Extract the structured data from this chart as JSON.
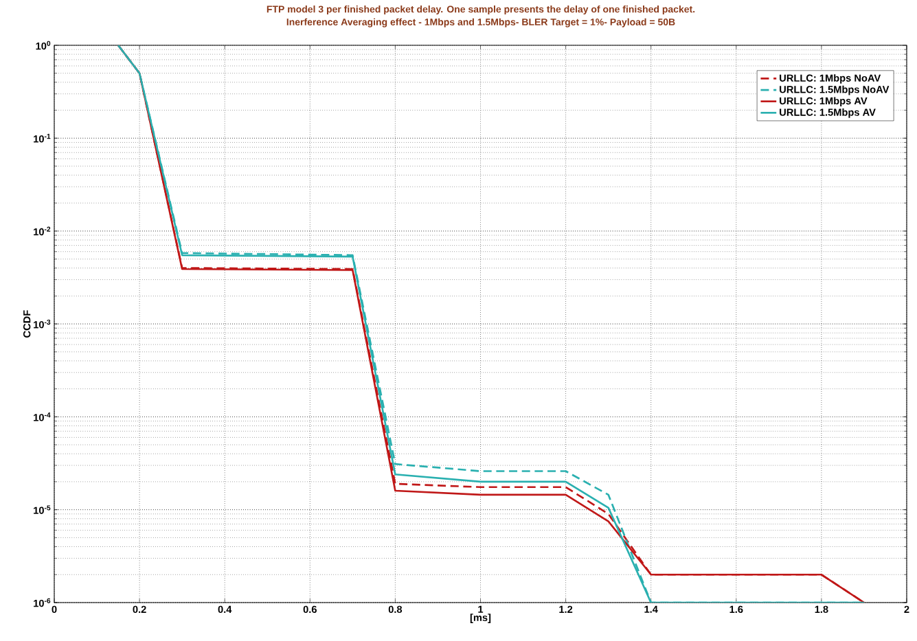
{
  "chart_data": {
    "type": "line",
    "title": "FTP model 3 per finished packet delay. One sample presents the delay of one finished packet.",
    "subtitle": "Inerference Averaging effect - 1Mbps and 1.5Mbps- BLER Target = 1%- Payload = 50B",
    "xlabel": "[ms]",
    "ylabel": "CCDF",
    "log": "y",
    "grid": true,
    "legend": "top right",
    "xlim": [
      0,
      2
    ],
    "ylim": [
      1e-06,
      1
    ],
    "xticks": [
      0,
      0.2,
      0.4,
      0.6,
      0.8,
      1,
      1.2,
      1.4,
      1.6,
      1.8,
      2
    ],
    "yticks": [
      {
        "value": 1e-06,
        "label": "10$^{-6}$"
      },
      {
        "value": 1e-05,
        "label": "10$^{-5}$"
      },
      {
        "value": 0.0001,
        "label": "10$^{-4}$"
      },
      {
        "value": 0.001,
        "label": "10$^{-3}$"
      },
      {
        "value": 0.01,
        "label": "10$^{-2}$"
      },
      {
        "value": 0.1,
        "label": "10$^{-1}$"
      },
      {
        "value": 1,
        "label": "10$^{0}$"
      }
    ],
    "x": [
      0.15,
      0.2,
      0.3,
      0.7,
      0.8,
      1.0,
      1.2,
      1.3,
      1.4,
      1.8,
      1.9
    ],
    "series": [
      {
        "name": "URLLC: 1Mbps NoAV",
        "color": "#c01818",
        "line_style": "dashed",
        "values": [
          1,
          0.5,
          0.004,
          0.0039,
          1.9e-05,
          1.75e-05,
          1.75e-05,
          9e-06,
          2e-06,
          2e-06,
          1e-06
        ]
      },
      {
        "name": "URLLC: 1.5Mbps NoAV",
        "color": "#2ab0b0",
        "line_style": "dashed",
        "values": [
          1,
          0.5,
          0.0058,
          0.0055,
          3.1e-05,
          2.6e-05,
          2.6e-05,
          1.45e-05,
          1e-06,
          1e-06,
          1e-06
        ]
      },
      {
        "name": "URLLC: 1Mbps AV",
        "color": "#c01818",
        "line_style": "solid",
        "values": [
          1,
          0.5,
          0.0039,
          0.0038,
          1.6e-05,
          1.45e-05,
          1.45e-05,
          7.5e-06,
          2e-06,
          2e-06,
          1e-06
        ]
      },
      {
        "name": "URLLC: 1.5Mbps AV",
        "color": "#2ab0b0",
        "line_style": "solid",
        "values": [
          1,
          0.5,
          0.0055,
          0.0053,
          2.4e-05,
          2e-05,
          2e-05,
          1.05e-05,
          1e-06,
          1e-06,
          1e-06
        ]
      }
    ]
  }
}
